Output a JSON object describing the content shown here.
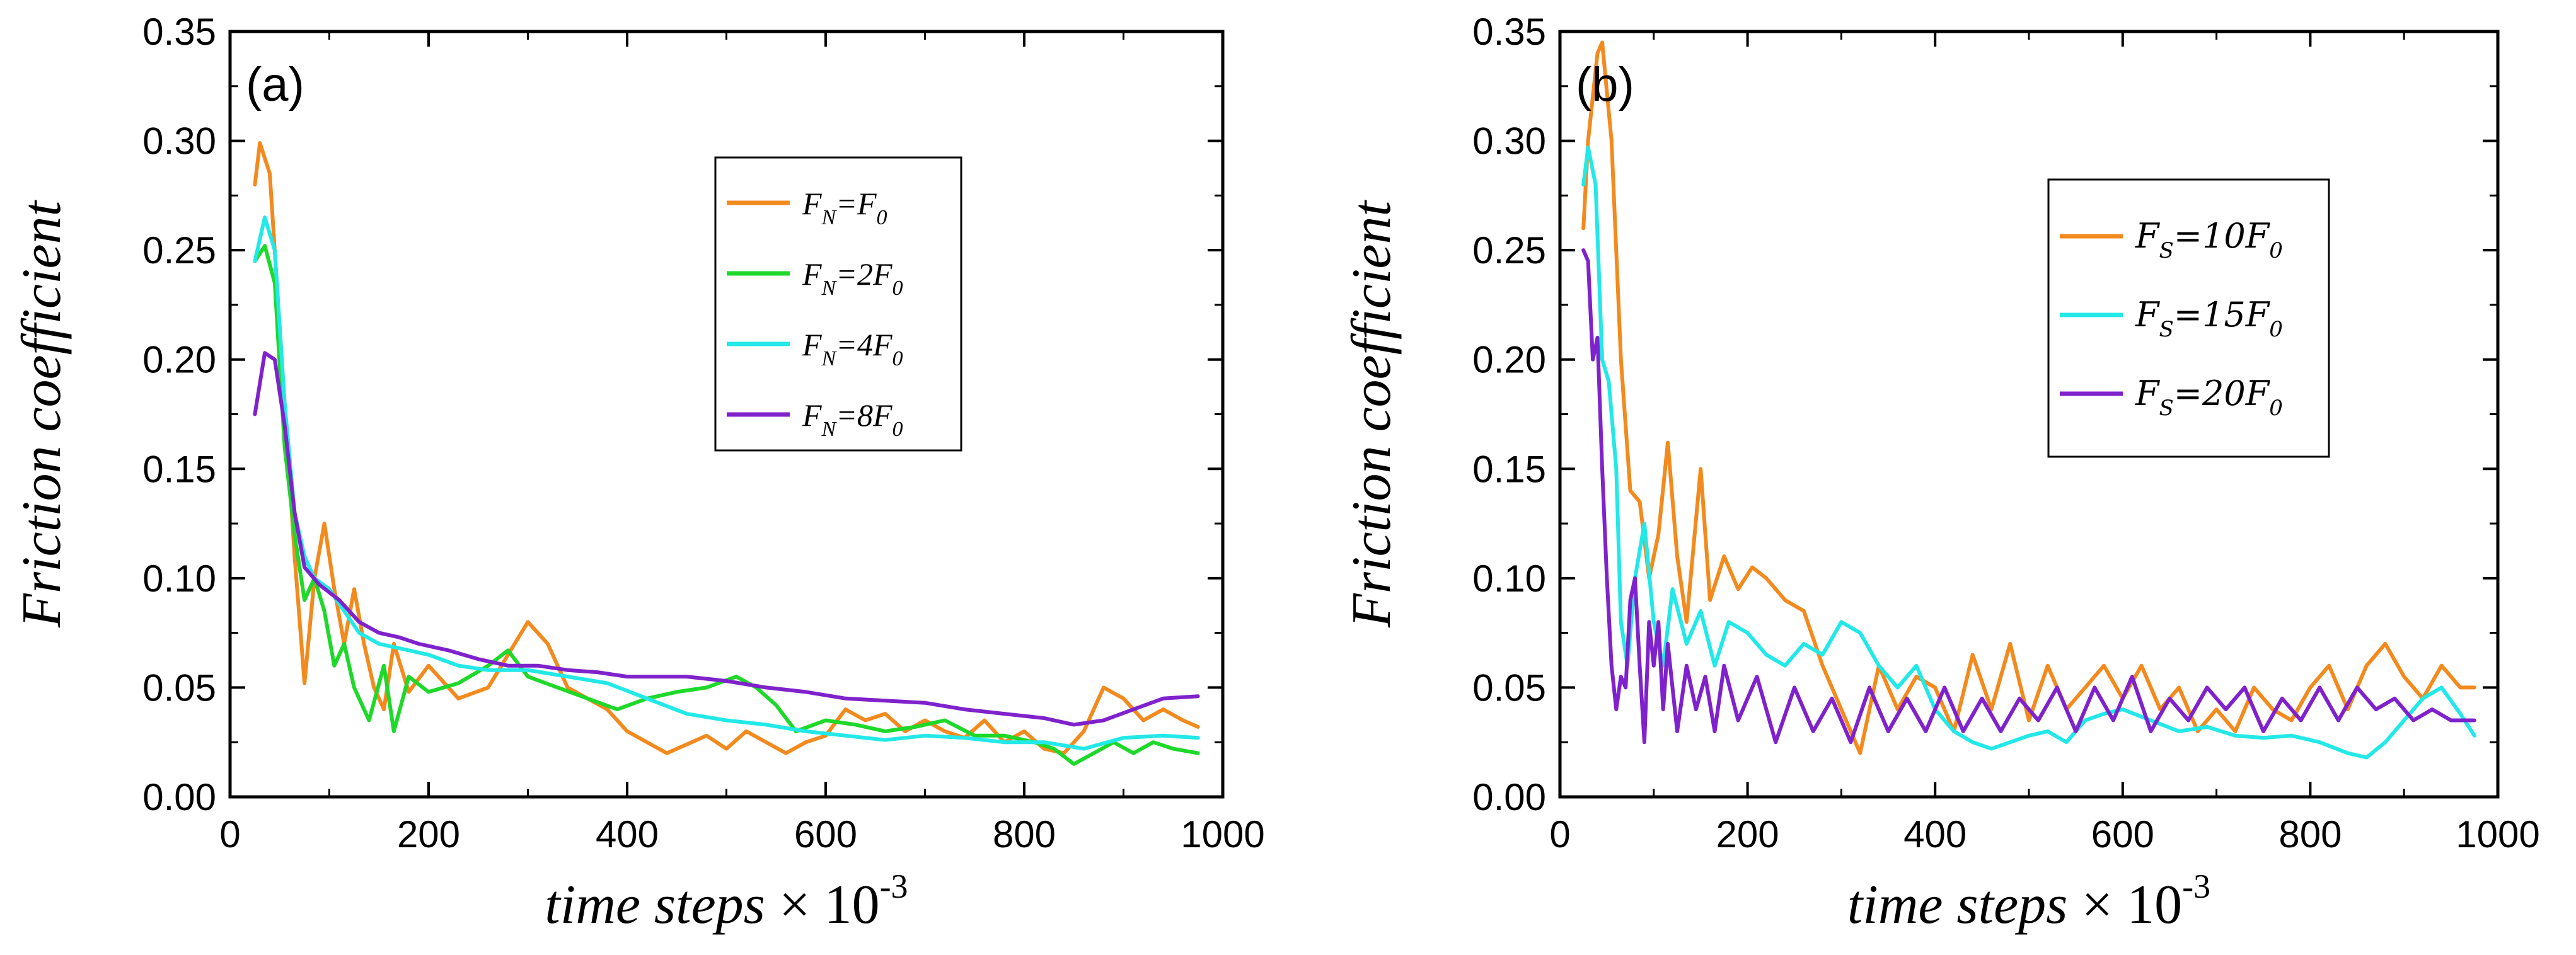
{
  "chart_data": [
    {
      "type": "line",
      "panel_label": "(a)",
      "xlabel_main": "time steps",
      "xlabel_times": " × 10",
      "xlabel_exp": "-3",
      "ylabel": "Friction coefficient",
      "xlim": [
        0,
        1000
      ],
      "ylim": [
        0,
        0.35
      ],
      "x_ticks": [
        0,
        200,
        400,
        600,
        800,
        1000
      ],
      "x_tick_labels": [
        "0",
        "200",
        "400",
        "600",
        "800",
        "1000"
      ],
      "y_ticks": [
        0,
        0.05,
        0.1,
        0.15,
        0.2,
        0.25,
        0.3,
        0.35
      ],
      "y_tick_labels": [
        "0.00",
        "0.05",
        "0.10",
        "0.15",
        "0.20",
        "0.25",
        "0.30",
        "0.35"
      ],
      "legend_position": "upper-right",
      "series": [
        {
          "name": "FN=F0",
          "legend": {
            "main": "F",
            "sub": "N",
            "mid": "=F",
            "sub2": "0"
          },
          "color": "#F28A1E",
          "x": [
            25,
            30,
            40,
            55,
            65,
            75,
            85,
            95,
            105,
            115,
            125,
            135,
            145,
            155,
            165,
            180,
            200,
            230,
            260,
            280,
            300,
            320,
            340,
            360,
            380,
            400,
            420,
            440,
            460,
            480,
            500,
            520,
            540,
            560,
            580,
            600,
            620,
            640,
            660,
            680,
            700,
            720,
            740,
            760,
            780,
            800,
            820,
            840,
            860,
            880,
            900,
            920,
            940,
            960,
            975
          ],
          "y": [
            0.28,
            0.299,
            0.285,
            0.18,
            0.11,
            0.052,
            0.1,
            0.125,
            0.095,
            0.07,
            0.095,
            0.07,
            0.05,
            0.04,
            0.07,
            0.048,
            0.06,
            0.045,
            0.05,
            0.065,
            0.08,
            0.07,
            0.05,
            0.045,
            0.04,
            0.03,
            0.025,
            0.02,
            0.024,
            0.028,
            0.022,
            0.03,
            0.025,
            0.02,
            0.025,
            0.028,
            0.04,
            0.035,
            0.038,
            0.03,
            0.035,
            0.03,
            0.027,
            0.035,
            0.025,
            0.03,
            0.022,
            0.02,
            0.03,
            0.05,
            0.045,
            0.035,
            0.04,
            0.035,
            0.032
          ]
        },
        {
          "name": "FN=2F0",
          "legend": {
            "main": "F",
            "sub": "N",
            "mid": "=2F",
            "sub2": "0"
          },
          "color": "#1ED82A",
          "x": [
            25,
            35,
            45,
            55,
            65,
            75,
            85,
            95,
            105,
            115,
            125,
            140,
            155,
            165,
            180,
            200,
            230,
            260,
            280,
            300,
            330,
            360,
            390,
            420,
            450,
            480,
            510,
            530,
            550,
            570,
            600,
            630,
            660,
            690,
            720,
            750,
            780,
            810,
            830,
            850,
            870,
            890,
            910,
            930,
            950,
            975
          ],
          "y": [
            0.245,
            0.252,
            0.235,
            0.16,
            0.12,
            0.09,
            0.1,
            0.085,
            0.06,
            0.07,
            0.05,
            0.035,
            0.06,
            0.03,
            0.055,
            0.048,
            0.052,
            0.06,
            0.067,
            0.055,
            0.05,
            0.045,
            0.04,
            0.045,
            0.048,
            0.05,
            0.055,
            0.05,
            0.042,
            0.03,
            0.035,
            0.033,
            0.03,
            0.032,
            0.035,
            0.028,
            0.028,
            0.025,
            0.022,
            0.015,
            0.02,
            0.025,
            0.02,
            0.025,
            0.022,
            0.02
          ]
        },
        {
          "name": "FN=4F0",
          "legend": {
            "main": "F",
            "sub": "N",
            "mid": "=4F",
            "sub2": "0"
          },
          "color": "#23E8E8",
          "x": [
            25,
            35,
            45,
            55,
            65,
            75,
            85,
            100,
            115,
            130,
            150,
            170,
            200,
            230,
            260,
            300,
            340,
            380,
            420,
            460,
            500,
            540,
            580,
            620,
            660,
            700,
            740,
            780,
            820,
            860,
            900,
            940,
            975
          ],
          "y": [
            0.245,
            0.265,
            0.25,
            0.18,
            0.13,
            0.11,
            0.1,
            0.095,
            0.085,
            0.075,
            0.07,
            0.068,
            0.065,
            0.06,
            0.058,
            0.058,
            0.055,
            0.052,
            0.045,
            0.038,
            0.035,
            0.033,
            0.03,
            0.028,
            0.026,
            0.028,
            0.027,
            0.025,
            0.025,
            0.022,
            0.027,
            0.028,
            0.027
          ]
        },
        {
          "name": "FN=8F0",
          "legend": {
            "main": "F",
            "sub": "N",
            "mid": "=8F",
            "sub2": "0"
          },
          "color": "#7F22CC",
          "x": [
            25,
            35,
            45,
            55,
            65,
            75,
            90,
            110,
            130,
            150,
            170,
            190,
            220,
            250,
            280,
            310,
            340,
            370,
            400,
            430,
            460,
            500,
            540,
            580,
            620,
            660,
            700,
            740,
            780,
            820,
            850,
            880,
            910,
            940,
            975
          ],
          "y": [
            0.175,
            0.203,
            0.2,
            0.17,
            0.13,
            0.105,
            0.097,
            0.09,
            0.08,
            0.075,
            0.073,
            0.07,
            0.067,
            0.063,
            0.06,
            0.06,
            0.058,
            0.057,
            0.055,
            0.055,
            0.055,
            0.053,
            0.05,
            0.048,
            0.045,
            0.044,
            0.043,
            0.04,
            0.038,
            0.036,
            0.033,
            0.035,
            0.04,
            0.045,
            0.046
          ]
        }
      ]
    },
    {
      "type": "line",
      "panel_label": "(b)",
      "xlabel_main": "time steps",
      "xlabel_times": " × 10",
      "xlabel_exp": "-3",
      "ylabel": "Friction coefficient",
      "xlim": [
        0,
        1000
      ],
      "ylim": [
        0,
        0.35
      ],
      "x_ticks": [
        0,
        200,
        400,
        600,
        800,
        1000
      ],
      "x_tick_labels": [
        "0",
        "200",
        "400",
        "600",
        "800",
        "1000"
      ],
      "y_ticks": [
        0,
        0.05,
        0.1,
        0.15,
        0.2,
        0.25,
        0.3,
        0.35
      ],
      "y_tick_labels": [
        "0.00",
        "0.05",
        "0.10",
        "0.15",
        "0.20",
        "0.25",
        "0.30",
        "0.35"
      ],
      "legend_position": "upper-right",
      "series": [
        {
          "name": "FS=10F0",
          "legend": {
            "main": "F",
            "sub": "S",
            "mid": "=10F",
            "sub2": "0"
          },
          "color": "#F28A1E",
          "x": [
            25,
            30,
            40,
            45,
            55,
            65,
            75,
            85,
            95,
            105,
            115,
            125,
            135,
            150,
            160,
            175,
            190,
            205,
            220,
            240,
            260,
            280,
            300,
            320,
            340,
            360,
            380,
            400,
            420,
            440,
            460,
            480,
            500,
            520,
            540,
            560,
            580,
            600,
            620,
            640,
            660,
            680,
            700,
            720,
            740,
            760,
            780,
            800,
            820,
            840,
            860,
            880,
            900,
            920,
            940,
            960,
            975
          ],
          "y": [
            0.26,
            0.3,
            0.34,
            0.345,
            0.3,
            0.2,
            0.14,
            0.135,
            0.1,
            0.12,
            0.162,
            0.11,
            0.08,
            0.15,
            0.09,
            0.11,
            0.095,
            0.105,
            0.1,
            0.09,
            0.085,
            0.06,
            0.04,
            0.02,
            0.06,
            0.04,
            0.055,
            0.05,
            0.03,
            0.065,
            0.04,
            0.07,
            0.035,
            0.06,
            0.04,
            0.05,
            0.06,
            0.045,
            0.06,
            0.04,
            0.05,
            0.03,
            0.04,
            0.03,
            0.05,
            0.04,
            0.035,
            0.05,
            0.06,
            0.04,
            0.06,
            0.07,
            0.055,
            0.045,
            0.06,
            0.05,
            0.05
          ]
        },
        {
          "name": "FS=15F0",
          "legend": {
            "main": "F",
            "sub": "S",
            "mid": "=15F",
            "sub2": "0"
          },
          "color": "#23E8E8",
          "x": [
            25,
            30,
            38,
            45,
            52,
            60,
            65,
            72,
            80,
            90,
            100,
            110,
            120,
            135,
            150,
            165,
            180,
            200,
            220,
            240,
            260,
            280,
            300,
            320,
            340,
            360,
            380,
            400,
            420,
            440,
            460,
            480,
            500,
            520,
            540,
            560,
            580,
            600,
            630,
            660,
            690,
            720,
            750,
            780,
            810,
            840,
            860,
            880,
            900,
            920,
            940,
            960,
            975
          ],
          "y": [
            0.28,
            0.297,
            0.28,
            0.2,
            0.19,
            0.15,
            0.08,
            0.06,
            0.1,
            0.125,
            0.08,
            0.06,
            0.095,
            0.07,
            0.085,
            0.06,
            0.08,
            0.075,
            0.065,
            0.06,
            0.07,
            0.065,
            0.08,
            0.075,
            0.06,
            0.05,
            0.06,
            0.04,
            0.03,
            0.025,
            0.022,
            0.025,
            0.028,
            0.03,
            0.025,
            0.035,
            0.038,
            0.04,
            0.035,
            0.03,
            0.032,
            0.028,
            0.027,
            0.028,
            0.025,
            0.02,
            0.018,
            0.025,
            0.035,
            0.045,
            0.05,
            0.038,
            0.028
          ]
        },
        {
          "name": "FS=20F0",
          "legend": {
            "main": "F",
            "sub": "S",
            "mid": "=20F",
            "sub2": "0"
          },
          "color": "#7F22CC",
          "x": [
            25,
            30,
            35,
            40,
            45,
            50,
            55,
            60,
            65,
            70,
            75,
            80,
            85,
            90,
            95,
            100,
            105,
            110,
            115,
            125,
            135,
            145,
            155,
            165,
            175,
            190,
            210,
            230,
            250,
            270,
            290,
            310,
            330,
            350,
            370,
            390,
            410,
            430,
            450,
            470,
            490,
            510,
            530,
            550,
            570,
            590,
            610,
            630,
            650,
            670,
            690,
            710,
            730,
            750,
            770,
            790,
            810,
            830,
            850,
            870,
            890,
            910,
            930,
            950,
            975
          ],
          "y": [
            0.25,
            0.245,
            0.2,
            0.21,
            0.15,
            0.1,
            0.06,
            0.04,
            0.055,
            0.05,
            0.09,
            0.1,
            0.06,
            0.025,
            0.08,
            0.06,
            0.08,
            0.04,
            0.07,
            0.03,
            0.06,
            0.04,
            0.055,
            0.03,
            0.06,
            0.035,
            0.055,
            0.025,
            0.05,
            0.03,
            0.045,
            0.025,
            0.05,
            0.03,
            0.045,
            0.03,
            0.05,
            0.03,
            0.045,
            0.03,
            0.045,
            0.035,
            0.05,
            0.03,
            0.05,
            0.035,
            0.055,
            0.03,
            0.045,
            0.035,
            0.05,
            0.04,
            0.05,
            0.03,
            0.045,
            0.035,
            0.05,
            0.035,
            0.05,
            0.04,
            0.045,
            0.035,
            0.04,
            0.035,
            0.035
          ]
        }
      ]
    }
  ]
}
